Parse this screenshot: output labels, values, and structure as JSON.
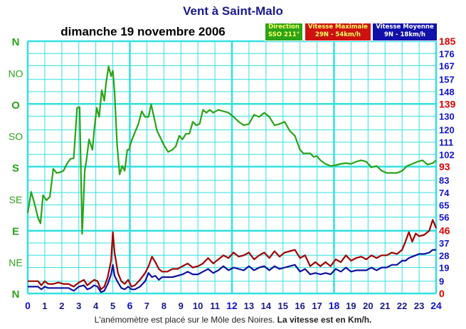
{
  "title": "Vent à Saint-Malo",
  "date_label": "dimanche 19 novembre 2006",
  "legend": {
    "direction": {
      "title": "Direction",
      "value": "SSO 211°",
      "color": "#2aa318"
    },
    "max": {
      "title": "Vitesse Maximale",
      "value": "29N - 54km/h",
      "color": "#a00000"
    },
    "moy": {
      "title": "Vitesse Moyenne",
      "value": "9N - 18km/h",
      "color": "#1010a0"
    }
  },
  "footer": {
    "main": "L'anémomètre est placé sur le Môle des Noires.",
    "bold": "La vitesse est en Km/h."
  },
  "colors": {
    "grid": "#33e0e0",
    "grid_major": "#22c8e0",
    "direction": "#2aa318",
    "max": "#a00000",
    "moy": "#1010a0",
    "left_axis": "#2aa318",
    "right_axis_blue": "#1111cc",
    "right_axis_red": "#dd0000",
    "x_axis": "#1a1a8c"
  },
  "chart_data": {
    "type": "line",
    "x_ticks": [
      "0",
      "1",
      "2",
      "3",
      "4",
      "5",
      "6",
      "7",
      "8",
      "9",
      "10",
      "11",
      "12",
      "13",
      "14",
      "15",
      "16",
      "17",
      "18",
      "19",
      "20",
      "21",
      "22",
      "23",
      "24"
    ],
    "x_major_ticks": [
      "0",
      "6",
      "12",
      "18",
      "24"
    ],
    "xlim": [
      0,
      24
    ],
    "xlabel": "",
    "left_axis": {
      "labels": [
        "N",
        "NE",
        "E",
        "SE",
        "S",
        "SO",
        "O",
        "NO",
        "N"
      ],
      "bold_labels": [
        "N",
        "E",
        "S",
        "O",
        "N"
      ],
      "range_degrees": [
        0,
        360
      ]
    },
    "right_axis": {
      "ylim": [
        0,
        185
      ],
      "ticks": [
        "0",
        "9",
        "19",
        "28",
        "37",
        "46",
        "56",
        "65",
        "74",
        "83",
        "93",
        "102",
        "111",
        "120",
        "130",
        "139",
        "148",
        "157",
        "167",
        "176",
        "185"
      ],
      "red_ticks": [
        "0",
        "46",
        "93",
        "139",
        "185"
      ]
    },
    "series": [
      {
        "name": "Direction",
        "axis": "left_degrees",
        "x": [
          0,
          0.2,
          0.4,
          0.6,
          0.75,
          0.9,
          1.1,
          1.3,
          1.5,
          1.7,
          1.9,
          2.1,
          2.3,
          2.5,
          2.7,
          2.9,
          3.05,
          3.2,
          3.35,
          3.45,
          3.6,
          3.8,
          3.9,
          4.05,
          4.2,
          4.35,
          4.5,
          4.6,
          4.75,
          4.9,
          5.0,
          5.1,
          5.25,
          5.4,
          5.55,
          5.7,
          5.85,
          5.95,
          6.1,
          6.3,
          6.5,
          6.7,
          6.9,
          7.1,
          7.25,
          7.45,
          7.6,
          7.8,
          8.0,
          8.25,
          8.5,
          8.7,
          8.9,
          9.1,
          9.3,
          9.5,
          9.7,
          9.9,
          10.1,
          10.3,
          10.5,
          10.7,
          10.9,
          11.2,
          11.5,
          11.8,
          12.1,
          12.4,
          12.7,
          13.0,
          13.3,
          13.6,
          13.9,
          14.2,
          14.5,
          14.8,
          15.1,
          15.4,
          15.7,
          16.0,
          16.2,
          16.4,
          16.6,
          16.8,
          17.0,
          17.2,
          17.5,
          17.8,
          18.1,
          18.4,
          18.7,
          19.0,
          19.3,
          19.6,
          19.9,
          20.2,
          20.5,
          20.8,
          21.1,
          21.4,
          21.7,
          22.0,
          22.3,
          22.6,
          22.9,
          23.2,
          23.5,
          23.8,
          24.0
        ],
        "values": [
          115,
          145,
          128,
          108,
          100,
          140,
          133,
          138,
          178,
          172,
          173,
          175,
          185,
          192,
          193,
          265,
          266,
          85,
          175,
          190,
          220,
          205,
          232,
          265,
          252,
          290,
          275,
          300,
          324,
          310,
          318,
          288,
          212,
          170,
          182,
          175,
          205,
          205,
          218,
          230,
          242,
          260,
          252,
          252,
          270,
          248,
          232,
          222,
          212,
          202,
          205,
          210,
          225,
          220,
          228,
          228,
          245,
          240,
          242,
          262,
          258,
          262,
          258,
          262,
          260,
          258,
          252,
          245,
          240,
          242,
          255,
          252,
          258,
          252,
          240,
          242,
          245,
          232,
          225,
          205,
          200,
          200,
          200,
          195,
          196,
          190,
          185,
          182,
          183,
          185,
          186,
          185,
          188,
          190,
          188,
          180,
          182,
          175,
          172,
          172,
          172,
          175,
          182,
          185,
          188,
          190,
          184,
          186,
          190
        ],
        "color": "#2aa318"
      },
      {
        "name": "Vitesse Maximale",
        "axis": "right_kmh",
        "x": [
          0,
          0.3,
          0.6,
          0.8,
          1.0,
          1.2,
          1.5,
          1.8,
          2.1,
          2.4,
          2.7,
          3.0,
          3.3,
          3.5,
          3.7,
          3.9,
          4.1,
          4.3,
          4.5,
          4.7,
          4.9,
          5.0,
          5.1,
          5.3,
          5.5,
          5.7,
          5.9,
          6.1,
          6.3,
          6.6,
          6.9,
          7.1,
          7.3,
          7.5,
          7.7,
          7.9,
          8.2,
          8.5,
          8.8,
          9.1,
          9.4,
          9.7,
          10.0,
          10.3,
          10.6,
          10.9,
          11.2,
          11.5,
          11.8,
          12.1,
          12.4,
          12.7,
          13.0,
          13.3,
          13.6,
          13.9,
          14.2,
          14.5,
          14.8,
          15.1,
          15.4,
          15.7,
          16.0,
          16.3,
          16.6,
          16.9,
          17.2,
          17.5,
          17.8,
          18.1,
          18.4,
          18.7,
          19.0,
          19.3,
          19.6,
          19.9,
          20.2,
          20.5,
          20.8,
          21.1,
          21.4,
          21.7,
          22.0,
          22.2,
          22.4,
          22.6,
          22.8,
          23.0,
          23.3,
          23.6,
          23.8,
          24.0
        ],
        "values": [
          9,
          9,
          9,
          6,
          9,
          7,
          7,
          8,
          7,
          7,
          5,
          8,
          10,
          6,
          8,
          10,
          9,
          3,
          5,
          12,
          24,
          45,
          30,
          15,
          9,
          7,
          10,
          5,
          6,
          10,
          15,
          20,
          27,
          23,
          18,
          16,
          16,
          18,
          18,
          20,
          22,
          19,
          20,
          22,
          26,
          22,
          25,
          28,
          26,
          30,
          27,
          28,
          30,
          25,
          28,
          30,
          26,
          31,
          27,
          30,
          31,
          32,
          26,
          28,
          20,
          23,
          20,
          23,
          20,
          25,
          23,
          28,
          24,
          26,
          27,
          25,
          28,
          26,
          28,
          28,
          30,
          29,
          32,
          38,
          45,
          38,
          44,
          42,
          43,
          46,
          54,
          48
        ]
      },
      {
        "name": "Vitesse Moyenne",
        "axis": "right_kmh",
        "x": [
          0,
          0.3,
          0.6,
          0.8,
          1.0,
          1.2,
          1.5,
          1.8,
          2.1,
          2.4,
          2.7,
          3.0,
          3.3,
          3.5,
          3.7,
          3.9,
          4.1,
          4.3,
          4.5,
          4.7,
          4.9,
          5.0,
          5.1,
          5.3,
          5.5,
          5.7,
          5.9,
          6.1,
          6.3,
          6.6,
          6.9,
          7.1,
          7.3,
          7.5,
          7.7,
          7.9,
          8.2,
          8.5,
          8.8,
          9.1,
          9.4,
          9.7,
          10.0,
          10.3,
          10.6,
          10.9,
          11.2,
          11.5,
          11.8,
          12.1,
          12.4,
          12.7,
          13.0,
          13.3,
          13.6,
          13.9,
          14.2,
          14.5,
          14.8,
          15.1,
          15.4,
          15.7,
          16.0,
          16.3,
          16.6,
          16.9,
          17.2,
          17.5,
          17.8,
          18.1,
          18.4,
          18.7,
          19.0,
          19.3,
          19.6,
          19.9,
          20.2,
          20.5,
          20.8,
          21.1,
          21.4,
          21.7,
          22.0,
          22.2,
          22.4,
          22.6,
          22.8,
          23.0,
          23.3,
          23.6,
          23.8,
          24.0
        ],
        "values": [
          5,
          5,
          5,
          3,
          5,
          4,
          4,
          4,
          4,
          4,
          2,
          5,
          6,
          3,
          4,
          6,
          5,
          1,
          2,
          7,
          14,
          21,
          13,
          8,
          4,
          3,
          5,
          3,
          3,
          5,
          9,
          15,
          12,
          13,
          10,
          12,
          12,
          12,
          13,
          14,
          16,
          14,
          14,
          16,
          18,
          15,
          17,
          20,
          17,
          19,
          18,
          17,
          20,
          17,
          19,
          20,
          17,
          20,
          18,
          19,
          20,
          21,
          16,
          18,
          14,
          15,
          14,
          15,
          14,
          18,
          16,
          19,
          16,
          17,
          17,
          17,
          19,
          17,
          19,
          19,
          21,
          21,
          24,
          24,
          26,
          27,
          28,
          29,
          29,
          30,
          32,
          32
        ]
      }
    ]
  }
}
